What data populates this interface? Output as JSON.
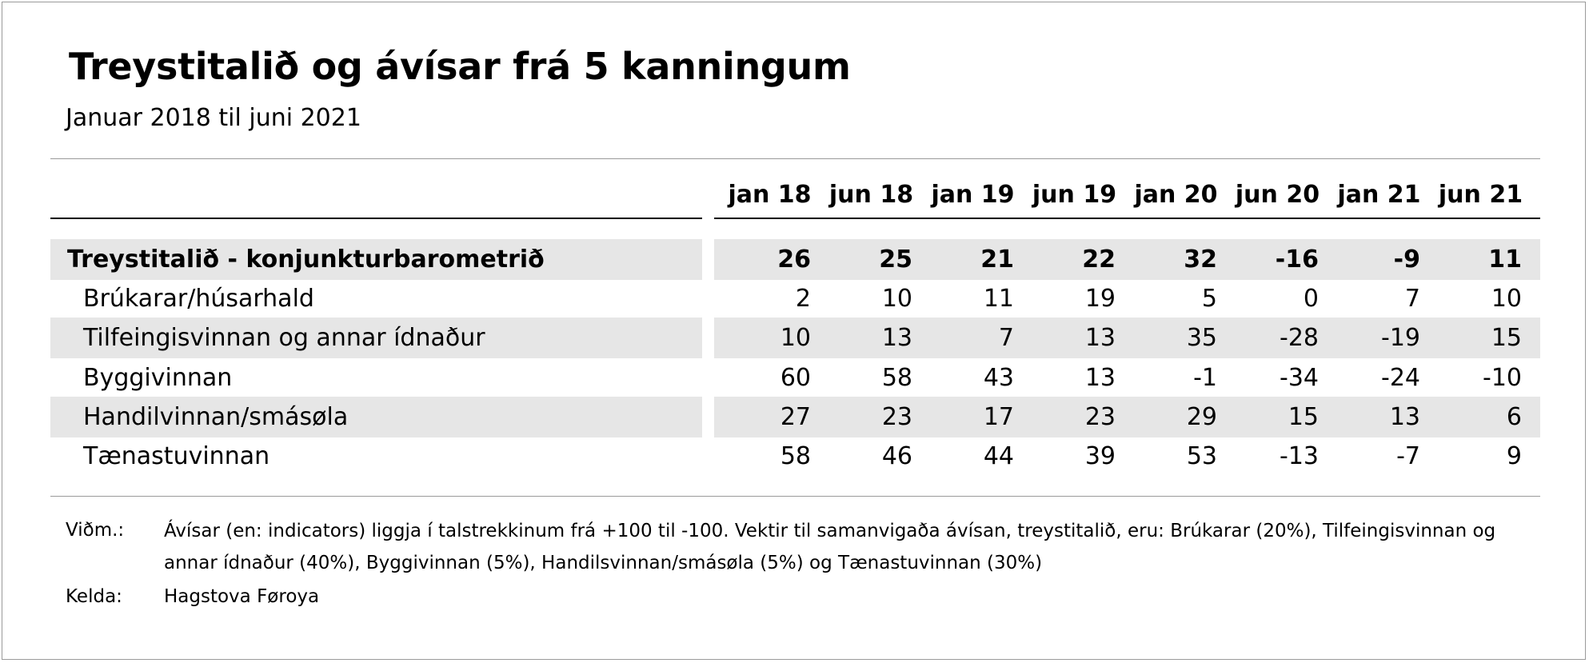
{
  "title": "Treystitalið og ávísar frá 5 kanningum",
  "subtitle": "Januar 2018 til juni 2021",
  "chart_data": {
    "type": "table",
    "columns": [
      "jan 18",
      "jun 18",
      "jan 19",
      "jun 19",
      "jan 20",
      "jun 20",
      "jan 21",
      "jun 21"
    ],
    "rows": [
      {
        "label": "Treystitalið - konjunkturbarometrið",
        "bold": true,
        "values": [
          "26",
          "25",
          "21",
          "22",
          "32",
          "-16",
          "-9",
          "11"
        ]
      },
      {
        "label": "Brúkarar/húsarhald",
        "bold": false,
        "values": [
          "2",
          "10",
          "11",
          "19",
          "5",
          "0",
          "7",
          "10"
        ]
      },
      {
        "label": "Tilfeingisvinnan og annar ídnaður",
        "bold": false,
        "values": [
          "10",
          "13",
          "7",
          "13",
          "35",
          "-28",
          "-19",
          "15"
        ]
      },
      {
        "label": "Byggivinnan",
        "bold": false,
        "values": [
          "60",
          "58",
          "43",
          "13",
          "-1",
          "-34",
          "-24",
          "-10"
        ]
      },
      {
        "label": "Handilvinnan/smásøla",
        "bold": false,
        "values": [
          "27",
          "23",
          "17",
          "23",
          "29",
          "15",
          "13",
          "6"
        ]
      },
      {
        "label": "Tænastuvinnan",
        "bold": false,
        "values": [
          "58",
          "46",
          "44",
          "39",
          "53",
          "-13",
          "-7",
          "9"
        ]
      }
    ]
  },
  "notes": {
    "label": "Viðm.:",
    "text": "Ávísar (en: indicators) liggja í talstrekkinum frá +100 til -100. Vektir til samanvigaða ávísan, treystitalið, eru: Brúkarar (20%), Tilfeingisvinnan og annar ídnaður (40%), Byggivinnan (5%), Handilsvinnan/smásøla (5%) og Tænastuvinnan (30%)"
  },
  "source": {
    "label": "Kelda:",
    "text": "Hagstova Føroya"
  }
}
